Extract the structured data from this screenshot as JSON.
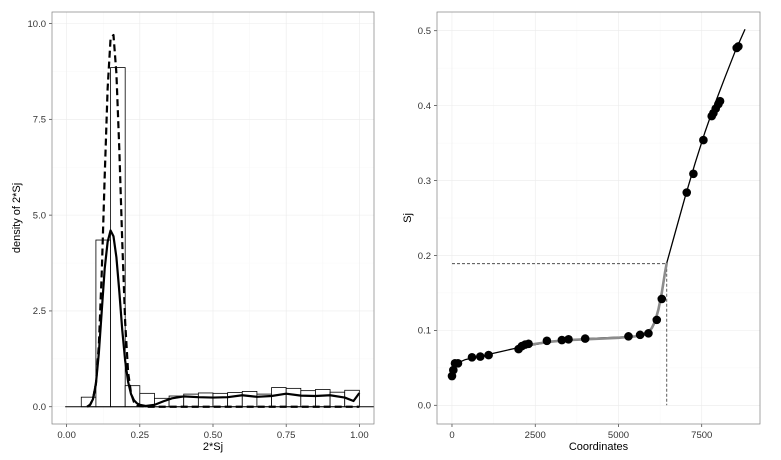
{
  "chart_data": [
    {
      "type": "histogram",
      "xlabel": "2*Sj",
      "ylabel": "density of 2*Sj",
      "xlim": [
        -0.05,
        1.05
      ],
      "ylim": [
        -0.45,
        10.3
      ],
      "xticks": [
        0.0,
        0.25,
        0.5,
        0.75,
        1.0
      ],
      "xtick_labels": [
        "0.00",
        "0.25",
        "0.50",
        "0.75",
        "1.00"
      ],
      "yticks": [
        0.0,
        2.5,
        5.0,
        7.5,
        10.0
      ],
      "ytick_labels": [
        "0.0",
        "2.5",
        "5.0",
        "7.5",
        "10.0"
      ],
      "grid": true,
      "bin_width": 0.05,
      "bins": [
        {
          "x0": 0.05,
          "value": 0.25
        },
        {
          "x0": 0.1,
          "value": 4.35
        },
        {
          "x0": 0.15,
          "value": 8.85
        },
        {
          "x0": 0.2,
          "value": 0.55
        },
        {
          "x0": 0.25,
          "value": 0.35
        },
        {
          "x0": 0.3,
          "value": 0.22
        },
        {
          "x0": 0.35,
          "value": 0.28
        },
        {
          "x0": 0.4,
          "value": 0.33
        },
        {
          "x0": 0.45,
          "value": 0.36
        },
        {
          "x0": 0.5,
          "value": 0.35
        },
        {
          "x0": 0.55,
          "value": 0.37
        },
        {
          "x0": 0.6,
          "value": 0.4
        },
        {
          "x0": 0.65,
          "value": 0.33
        },
        {
          "x0": 0.7,
          "value": 0.5
        },
        {
          "x0": 0.75,
          "value": 0.48
        },
        {
          "x0": 0.8,
          "value": 0.42
        },
        {
          "x0": 0.85,
          "value": 0.45
        },
        {
          "x0": 0.9,
          "value": 0.38
        },
        {
          "x0": 0.95,
          "value": 0.43
        }
      ],
      "series": [
        {
          "style": "dashed",
          "x": [
            0.07,
            0.08,
            0.09,
            0.1,
            0.11,
            0.12,
            0.13,
            0.14,
            0.15,
            0.16,
            0.17,
            0.18,
            0.19,
            0.2,
            0.21,
            0.22,
            0.23,
            0.24,
            0.25,
            0.28,
            0.3,
            0.4,
            0.5,
            0.6,
            0.7,
            0.8,
            0.9,
            1.0
          ],
          "y": [
            0.0,
            0.05,
            0.2,
            0.6,
            1.6,
            3.5,
            6.0,
            8.3,
            9.6,
            9.7,
            8.7,
            6.7,
            4.3,
            2.2,
            0.9,
            0.35,
            0.12,
            0.04,
            0.02,
            0.0,
            0.0,
            0.0,
            0.0,
            0.0,
            0.0,
            0.0,
            0.0,
            0.0
          ]
        },
        {
          "style": "solid",
          "x": [
            0.07,
            0.08,
            0.09,
            0.1,
            0.11,
            0.12,
            0.13,
            0.14,
            0.15,
            0.16,
            0.17,
            0.18,
            0.19,
            0.2,
            0.21,
            0.22,
            0.23,
            0.24,
            0.25,
            0.27,
            0.3,
            0.33,
            0.36,
            0.4,
            0.45,
            0.5,
            0.55,
            0.6,
            0.65,
            0.7,
            0.75,
            0.8,
            0.85,
            0.9,
            0.95,
            0.98,
            1.0
          ],
          "y": [
            0.0,
            0.05,
            0.2,
            0.6,
            1.4,
            2.5,
            3.6,
            4.3,
            4.6,
            4.45,
            3.9,
            3.0,
            2.0,
            1.2,
            0.65,
            0.33,
            0.17,
            0.09,
            0.05,
            0.02,
            0.05,
            0.14,
            0.22,
            0.27,
            0.25,
            0.24,
            0.25,
            0.3,
            0.26,
            0.28,
            0.34,
            0.29,
            0.28,
            0.3,
            0.24,
            0.15,
            0.36
          ]
        }
      ]
    },
    {
      "type": "scatter",
      "xlabel": "Coordinates",
      "ylabel": "Sj",
      "xlim": [
        -450,
        9250
      ],
      "ylim": [
        -0.025,
        0.525
      ],
      "xticks": [
        0,
        2500,
        5000,
        7500
      ],
      "xtick_labels": [
        "0",
        "2500",
        "5000",
        "7500"
      ],
      "yticks": [
        0.0,
        0.1,
        0.2,
        0.3,
        0.4,
        0.5
      ],
      "ytick_labels": [
        "0.0",
        "0.1",
        "0.2",
        "0.3",
        "0.4",
        "0.5"
      ],
      "grid": true,
      "points": {
        "x": [
          0,
          40,
          90,
          180,
          600,
          850,
          1100,
          2000,
          2100,
          2200,
          2300,
          2850,
          3300,
          3500,
          4000,
          5300,
          5650,
          5900,
          6150,
          6300,
          7050,
          7250,
          7550,
          7800,
          7850,
          7920,
          8000,
          8050,
          8550,
          8600
        ],
        "y": [
          0.039,
          0.047,
          0.056,
          0.056,
          0.064,
          0.065,
          0.067,
          0.075,
          0.079,
          0.081,
          0.082,
          0.086,
          0.087,
          0.088,
          0.089,
          0.092,
          0.094,
          0.096,
          0.114,
          0.142,
          0.284,
          0.309,
          0.354,
          0.386,
          0.39,
          0.396,
          0.402,
          0.406,
          0.477,
          0.479
        ]
      },
      "curve_black": {
        "x": [
          0,
          100,
          200,
          400,
          700,
          1000,
          1500,
          2000,
          2500,
          3000,
          3500,
          4000,
          4500,
          5000,
          5500,
          5700,
          5900
        ],
        "y": [
          0.039,
          0.051,
          0.057,
          0.061,
          0.064,
          0.067,
          0.072,
          0.077,
          0.081,
          0.085,
          0.087,
          0.089,
          0.09,
          0.091,
          0.092,
          0.093,
          0.095
        ]
      },
      "curve_gray": {
        "x": [
          2000,
          2500,
          3000,
          3500,
          4000,
          4500,
          5000,
          5500,
          5700,
          5900,
          6000,
          6100,
          6200,
          6300,
          6400,
          6450
        ],
        "y": [
          0.078,
          0.082,
          0.085,
          0.087,
          0.088,
          0.089,
          0.09,
          0.092,
          0.094,
          0.098,
          0.103,
          0.112,
          0.128,
          0.15,
          0.178,
          0.19
        ]
      },
      "curve_upper": {
        "x": [
          6450,
          6500,
          6700,
          7000,
          7300,
          7600,
          7900,
          8200,
          8500,
          8800
        ],
        "y": [
          0.19,
          0.198,
          0.23,
          0.278,
          0.323,
          0.365,
          0.403,
          0.438,
          0.472,
          0.502
        ]
      },
      "reference_lines": {
        "horizontal_y": 0.189,
        "vertical_x": 6450
      }
    }
  ]
}
